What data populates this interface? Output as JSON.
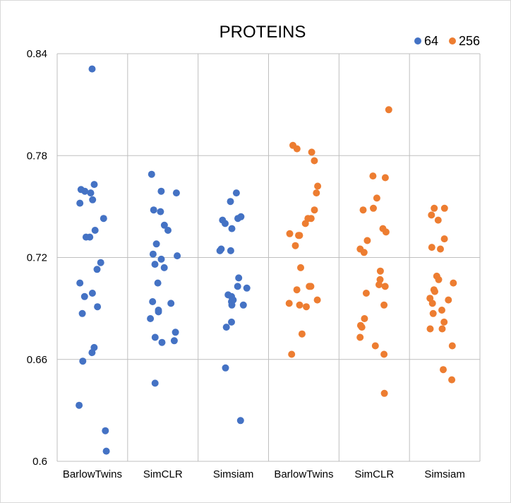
{
  "chart_data": {
    "type": "scatter",
    "title": "PROTEINS",
    "xlabel": "",
    "ylabel": "",
    "ylim": [
      0.6,
      0.84
    ],
    "y_ticks": [
      "0.84",
      "0.78",
      "0.72",
      "0.66",
      "0.6"
    ],
    "categories": [
      "BarlowTwins",
      "SimCLR",
      "Simsiam",
      "BarlowTwins",
      "SimCLR",
      "Simsiam"
    ],
    "legend_position": "top-right",
    "grid": true,
    "series": [
      {
        "name": "64",
        "color": "#4472c4",
        "groups": [
          {
            "category_index": 0,
            "values": [
              0.831,
              0.763,
              0.76,
              0.759,
              0.758,
              0.754,
              0.752,
              0.743,
              0.736,
              0.732,
              0.732,
              0.717,
              0.713,
              0.705,
              0.699,
              0.697,
              0.691,
              0.687,
              0.667,
              0.664,
              0.659,
              0.633,
              0.618,
              0.606
            ]
          },
          {
            "category_index": 1,
            "values": [
              0.769,
              0.759,
              0.758,
              0.748,
              0.747,
              0.739,
              0.736,
              0.728,
              0.722,
              0.721,
              0.719,
              0.716,
              0.714,
              0.705,
              0.694,
              0.693,
              0.689,
              0.688,
              0.684,
              0.676,
              0.673,
              0.671,
              0.67,
              0.646
            ]
          },
          {
            "category_index": 2,
            "values": [
              0.758,
              0.753,
              0.744,
              0.743,
              0.742,
              0.74,
              0.737,
              0.725,
              0.724,
              0.724,
              0.708,
              0.703,
              0.702,
              0.698,
              0.697,
              0.695,
              0.694,
              0.692,
              0.692,
              0.682,
              0.679,
              0.655,
              0.624
            ]
          }
        ]
      },
      {
        "name": "256",
        "color": "#ed7d31",
        "groups": [
          {
            "category_index": 3,
            "values": [
              0.786,
              0.784,
              0.782,
              0.777,
              0.762,
              0.758,
              0.748,
              0.743,
              0.743,
              0.74,
              0.734,
              0.733,
              0.733,
              0.727,
              0.714,
              0.703,
              0.703,
              0.701,
              0.695,
              0.693,
              0.692,
              0.691,
              0.675,
              0.663
            ]
          },
          {
            "category_index": 4,
            "values": [
              0.807,
              0.768,
              0.767,
              0.755,
              0.749,
              0.748,
              0.737,
              0.735,
              0.73,
              0.725,
              0.723,
              0.712,
              0.707,
              0.704,
              0.703,
              0.699,
              0.692,
              0.684,
              0.68,
              0.679,
              0.673,
              0.668,
              0.663,
              0.64
            ]
          },
          {
            "category_index": 5,
            "values": [
              0.749,
              0.749,
              0.745,
              0.742,
              0.731,
              0.726,
              0.725,
              0.709,
              0.707,
              0.705,
              0.701,
              0.7,
              0.696,
              0.695,
              0.693,
              0.689,
              0.687,
              0.682,
              0.678,
              0.678,
              0.668,
              0.654,
              0.648
            ]
          }
        ]
      }
    ]
  }
}
